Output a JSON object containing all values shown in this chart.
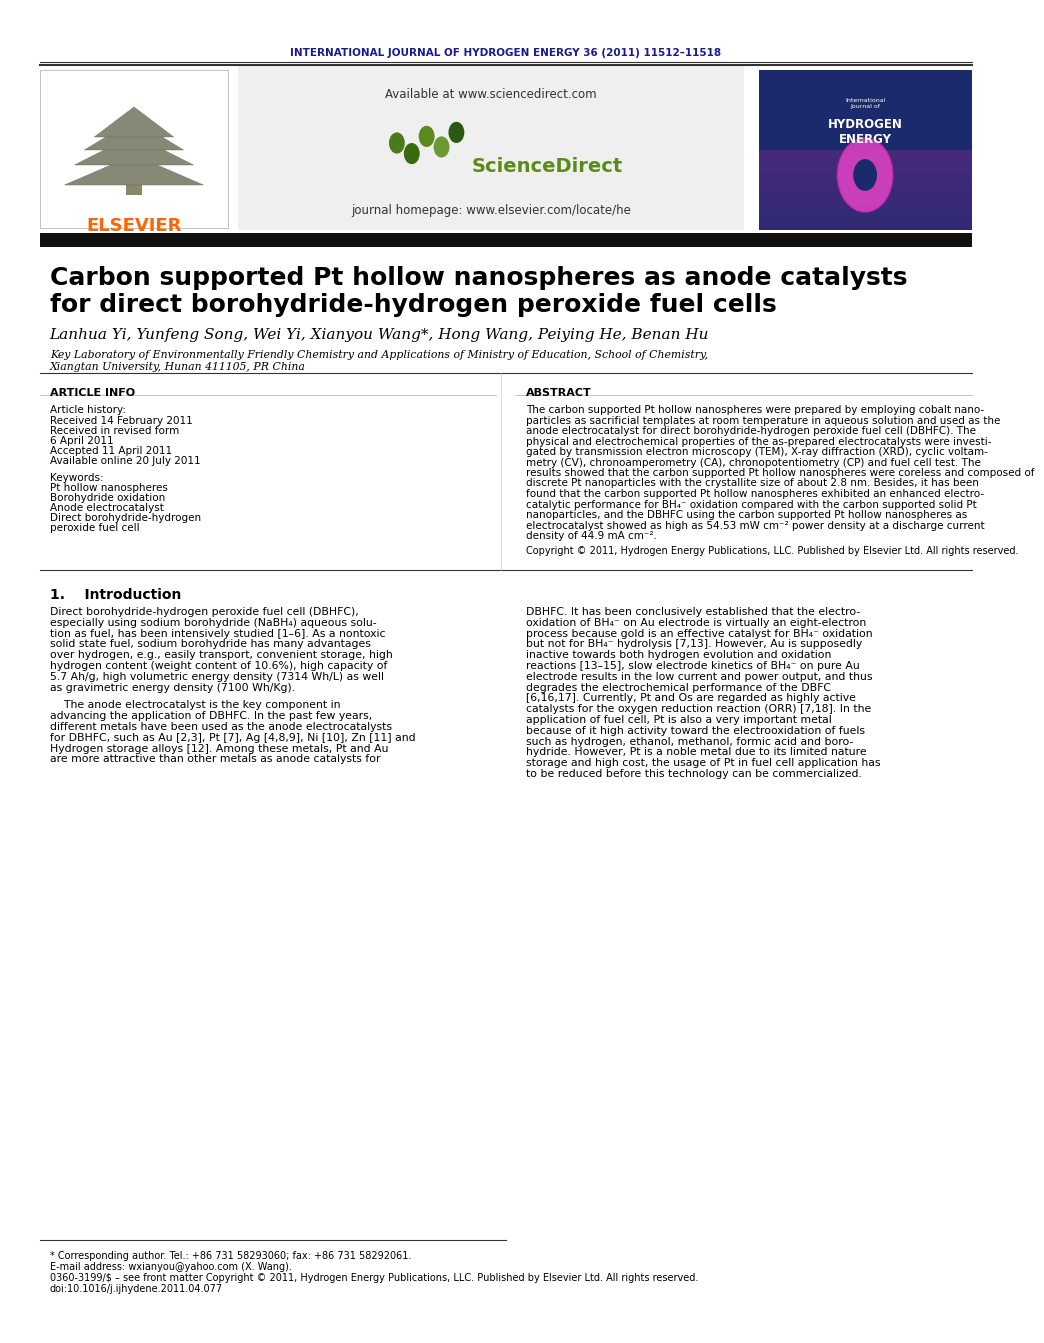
{
  "journal_header": "INTERNATIONAL JOURNAL OF HYDROGEN ENERGY 36 (2011) 11512–11518",
  "journal_header_color": "#1a1a8c",
  "elsevier_text": "ELSEVIER",
  "elsevier_color": "#ff6600",
  "available_text": "Available at www.sciencedirect.com",
  "sciencedirect_text": "ScienceDirect",
  "journal_homepage": "journal homepage: www.elsevier.com/locate/he",
  "title_line1": "Carbon supported Pt hollow nanospheres as anode catalysts",
  "title_line2": "for direct borohydride-hydrogen peroxide fuel cells",
  "authors": "Lanhua Yi, Yunfeng Song, Wei Yi, Xianyou Wang*, Hong Wang, Peiying He, Benan Hu",
  "affiliation1": "Key Laboratory of Environmentally Friendly Chemistry and Applications of Ministry of Education, School of Chemistry,",
  "affiliation2": "Xiangtan University, Hunan 411105, PR China",
  "article_info_header": "ARTICLE INFO",
  "abstract_header": "ABSTRACT",
  "article_history_label": "Article history:",
  "received1": "Received 14 February 2011",
  "received_revised": "Received in revised form",
  "revised_date": "6 April 2011",
  "accepted": "Accepted 11 April 2011",
  "available_online": "Available online 20 July 2011",
  "keywords_label": "Keywords:",
  "kw1": "Pt hollow nanospheres",
  "kw2": "Borohydride oxidation",
  "kw3": "Anode electrocatalyst",
  "kw4": "Direct borohydride-hydrogen",
  "kw5": "peroxide fuel cell",
  "copyright_text": "Copyright © 2011, Hydrogen Energy Publications, LLC. Published by Elsevier Ltd. All rights reserved.",
  "intro_header": "1.    Introduction",
  "footnote1": "* Corresponding author. Tel.: +86 731 58293060; fax: +86 731 58292061.",
  "footnote2": "E-mail address: wxianyou@yahoo.com (X. Wang).",
  "footnote3": "0360-3199/$ – see front matter Copyright © 2011, Hydrogen Energy Publications, LLC. Published by Elsevier Ltd. All rights reserved.",
  "footnote4": "doi:10.1016/j.ijhydene.2011.04.077",
  "bg_color": "#ffffff",
  "dark_bar_color": "#111111",
  "header_bg": "#efefef",
  "cover_dark": "#1a2a6c",
  "cover_purple": "#6a1a6c"
}
